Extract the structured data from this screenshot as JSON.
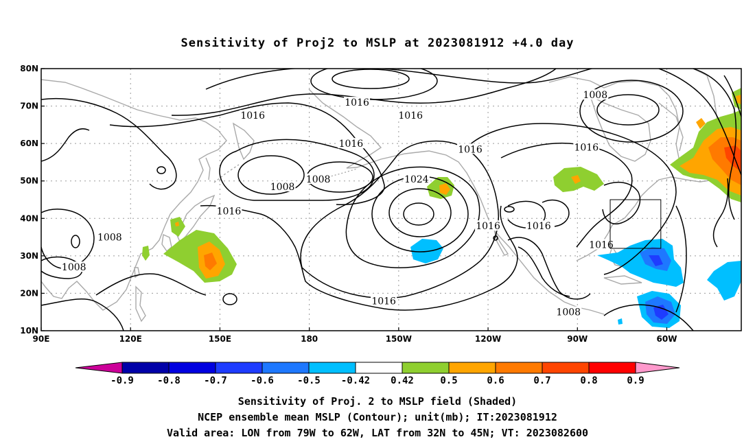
{
  "title": "Sensitivity of Proj2 to MSLP at 2023081912 +4.0 day",
  "axes": {
    "lat_labels": [
      "80N",
      "70N",
      "60N",
      "50N",
      "40N",
      "30N",
      "20N",
      "10N"
    ],
    "lon_labels": [
      "90E",
      "120E",
      "150E",
      "180",
      "150W",
      "120W",
      "90W",
      "60W"
    ]
  },
  "contour_labels": [
    {
      "text": "1016",
      "lon": -164,
      "lat": 71
    },
    {
      "text": "1016",
      "lon": 161,
      "lat": 67.5
    },
    {
      "text": "1016",
      "lon": -146,
      "lat": 67.5
    },
    {
      "text": "1016",
      "lon": -166,
      "lat": 60
    },
    {
      "text": "1016",
      "lon": -126,
      "lat": 58.5
    },
    {
      "text": "1016",
      "lon": -87,
      "lat": 59
    },
    {
      "text": "1008",
      "lon": -84,
      "lat": 73
    },
    {
      "text": "1008",
      "lon": 171,
      "lat": 48.5
    },
    {
      "text": "1008",
      "lon": -177,
      "lat": 50.5
    },
    {
      "text": "1024",
      "lon": -144,
      "lat": 50.5
    },
    {
      "text": "1016",
      "lon": 153,
      "lat": 42
    },
    {
      "text": "1008",
      "lon": 113,
      "lat": 35
    },
    {
      "text": "1008",
      "lon": 101,
      "lat": 27
    },
    {
      "text": "1016",
      "lon": -120,
      "lat": 38
    },
    {
      "text": "1016",
      "lon": -103,
      "lat": 38
    },
    {
      "text": "1016",
      "lon": -82,
      "lat": 33
    },
    {
      "text": "1016",
      "lon": -155,
      "lat": 18
    },
    {
      "text": "1008",
      "lon": -93,
      "lat": 15
    }
  ],
  "colorbar": {
    "labels": [
      "-0.9",
      "-0.8",
      "-0.7",
      "-0.6",
      "-0.5",
      "-0.42",
      "0.42",
      "0.5",
      "0.6",
      "0.7",
      "0.8",
      "0.9"
    ],
    "colors": [
      "#0000a8",
      "#0000e0",
      "#1e3cff",
      "#1e78ff",
      "#00bfff",
      "#ffffff",
      "#8fcf30",
      "#ffa500",
      "#ff7a00",
      "#ff4500",
      "#ff0000"
    ],
    "low_color": "#cc0099",
    "high_color": "#ff99cc"
  },
  "valid_area": {
    "lon_min": -79,
    "lon_max": -62,
    "lat_min": 32,
    "lat_max": 45
  },
  "captions": [
    "Sensitivity of Proj. 2 to MSLP field (Shaded)",
    "NCEP ensemble mean MSLP (Contour); unit(mb); IT:2023081912",
    "Valid area: LON from 79W to 62W, LAT from 32N to 45N; VT: 2023082600"
  ],
  "colors": {
    "contour": "#000000",
    "coast": "#a9a9a9",
    "grid": "#999999"
  }
}
